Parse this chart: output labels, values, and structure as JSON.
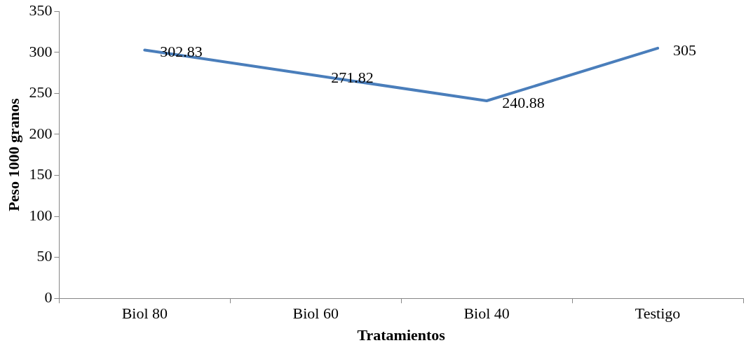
{
  "chart_data": {
    "type": "line",
    "xlabel": "Tratamientos",
    "ylabel": "Peso 1000 granos",
    "categories": [
      "Biol 80",
      "Biol 60",
      "Biol 40",
      "Testigo"
    ],
    "series": [
      {
        "color": "#4a7ebb",
        "values": [
          302.83,
          271.82,
          240.88,
          305
        ]
      }
    ],
    "ylim": [
      0,
      350
    ],
    "yticks": [
      0,
      50,
      100,
      150,
      200,
      250,
      300,
      350
    ],
    "grid": false,
    "legend": false,
    "marker": "none",
    "line_style": "solid",
    "data_labels": true
  }
}
